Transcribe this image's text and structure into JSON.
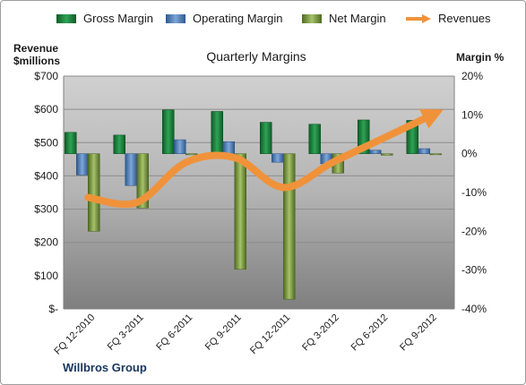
{
  "chart_data": {
    "type": "bar",
    "title": "Quarterly Margins",
    "footer": "Willbros Group",
    "left_axis": {
      "label_line1": "Revenue",
      "label_line2": "$millions",
      "min": 0,
      "max": 700,
      "step": 100,
      "ticks": [
        "$-",
        "$100",
        "$200",
        "$300",
        "$400",
        "$500",
        "$600",
        "$700"
      ]
    },
    "right_axis": {
      "label": "Margin %",
      "min": -40,
      "max": 20,
      "step": 10,
      "ticks": [
        "-40%",
        "-30%",
        "-20%",
        "-10%",
        "0%",
        "10%",
        "20%"
      ]
    },
    "categories": [
      "FQ 12-2010",
      "FQ 3-2011",
      "FQ 6-2011",
      "FQ 9-2011",
      "FQ 12-2011",
      "FQ 3-2012",
      "FQ 6-2012",
      "FQ 9-2012"
    ],
    "series": [
      {
        "name": "Gross Margin",
        "axis": "right",
        "color": "#1e8c3f",
        "values": [
          5.5,
          4.8,
          11.3,
          10.9,
          8.1,
          7.6,
          8.7,
          8.6
        ]
      },
      {
        "name": "Operating Margin",
        "axis": "right",
        "color": "#4f81bd",
        "values": [
          -5.5,
          -8.2,
          3.6,
          3.1,
          -2.2,
          -2.6,
          0.9,
          1.3
        ]
      },
      {
        "name": "Net Margin",
        "axis": "right",
        "color": "#77933c",
        "values": [
          -20.0,
          -14.0,
          0.0,
          -29.8,
          -37.5,
          -5.0,
          -0.4,
          0.0
        ]
      },
      {
        "name": "Revenues",
        "axis": "left",
        "type": "line",
        "color": "#f0923a",
        "values": [
          335,
          320,
          440,
          455,
          365,
          440,
          510,
          580
        ]
      }
    ],
    "grid": true,
    "legend_position": "top"
  }
}
